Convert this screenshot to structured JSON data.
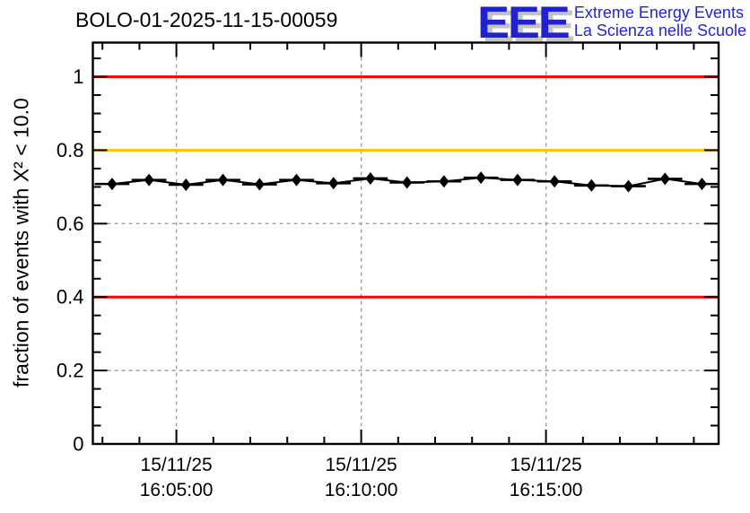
{
  "header": {
    "title": "BOLO-01-2025-11-15-00059",
    "logo": {
      "letters": "EEE",
      "line1": "Extreme Energy Events",
      "line2": "La Scienza nelle Scuole",
      "blue": "#2222cc",
      "text_blue": "#2424d8",
      "shadow_gray": "#c3c3c3"
    }
  },
  "colors": {
    "reference_red": "#ff0000",
    "reference_orange": "#fdc608",
    "series_black": "#000000",
    "grid_gray": "#9c9c9c",
    "frame_black": "#000000"
  },
  "chart_data": {
    "type": "line",
    "title": "BOLO-01-2025-11-15-00059",
    "xlabel": "",
    "ylabel": "fraction of events with X² < 10.0",
    "grid": "dashed, on major ticks only",
    "legend": "none",
    "y_axis": {
      "range": [
        0,
        1.093
      ],
      "major_ticks": [
        0,
        0.2,
        0.4,
        0.6,
        0.8,
        1.0
      ],
      "major_tick_labels": [
        "0",
        "0.2",
        "0.4",
        "0.6",
        "0.8",
        "1"
      ],
      "minor_tick_step": 0.05
    },
    "x_axis": {
      "unit": "time of day 15/11/25, minutes relative to 16:05:00",
      "range_min": [
        -2.26,
        14.67
      ],
      "range_time": [
        "16:02:44",
        "16:19:40"
      ],
      "major_tick_minutes": [
        0,
        5,
        10
      ],
      "major_tick_labels": [
        [
          "15/11/25",
          "16:05:00"
        ],
        [
          "15/11/25",
          "16:10:00"
        ],
        [
          "15/11/25",
          "16:15:00"
        ]
      ],
      "minor_tick_step_min": 1,
      "minor_tick_start_min": -2,
      "minor_tick_end_min": 14
    },
    "reference_lines": [
      {
        "value": 1.0,
        "color": "#ff0000"
      },
      {
        "value": 0.8,
        "color": "#fdc608"
      },
      {
        "value": 0.4,
        "color": "#ff0000"
      }
    ],
    "bin_halfwidth_min": 0.47,
    "series": [
      {
        "name": "fraction of events with X2 < 10.0",
        "marker": "filled-diamond",
        "color": "#000000",
        "points": [
          {
            "time": "16:03:16",
            "t_min": -1.74,
            "value": 0.708
          },
          {
            "time": "16:04:16",
            "t_min": -0.74,
            "value": 0.719
          },
          {
            "time": "16:05:16",
            "t_min": 0.26,
            "value": 0.706
          },
          {
            "time": "16:06:15",
            "t_min": 1.26,
            "value": 0.719
          },
          {
            "time": "16:07:15",
            "t_min": 2.25,
            "value": 0.707
          },
          {
            "time": "16:08:15",
            "t_min": 3.25,
            "value": 0.719
          },
          {
            "time": "16:09:15",
            "t_min": 4.25,
            "value": 0.71
          },
          {
            "time": "16:10:15",
            "t_min": 5.25,
            "value": 0.723
          },
          {
            "time": "16:11:14",
            "t_min": 6.24,
            "value": 0.712
          },
          {
            "time": "16:12:14",
            "t_min": 7.24,
            "value": 0.715
          },
          {
            "time": "16:13:14",
            "t_min": 8.24,
            "value": 0.725
          },
          {
            "time": "16:14:14",
            "t_min": 9.23,
            "value": 0.719
          },
          {
            "time": "16:15:14",
            "t_min": 10.23,
            "value": 0.715
          },
          {
            "time": "16:16:14",
            "t_min": 11.23,
            "value": 0.704
          },
          {
            "time": "16:17:14",
            "t_min": 12.23,
            "value": 0.702
          },
          {
            "time": "16:18:13",
            "t_min": 13.22,
            "value": 0.722
          },
          {
            "time": "16:19:13",
            "t_min": 14.22,
            "value": 0.708
          }
        ]
      }
    ]
  }
}
